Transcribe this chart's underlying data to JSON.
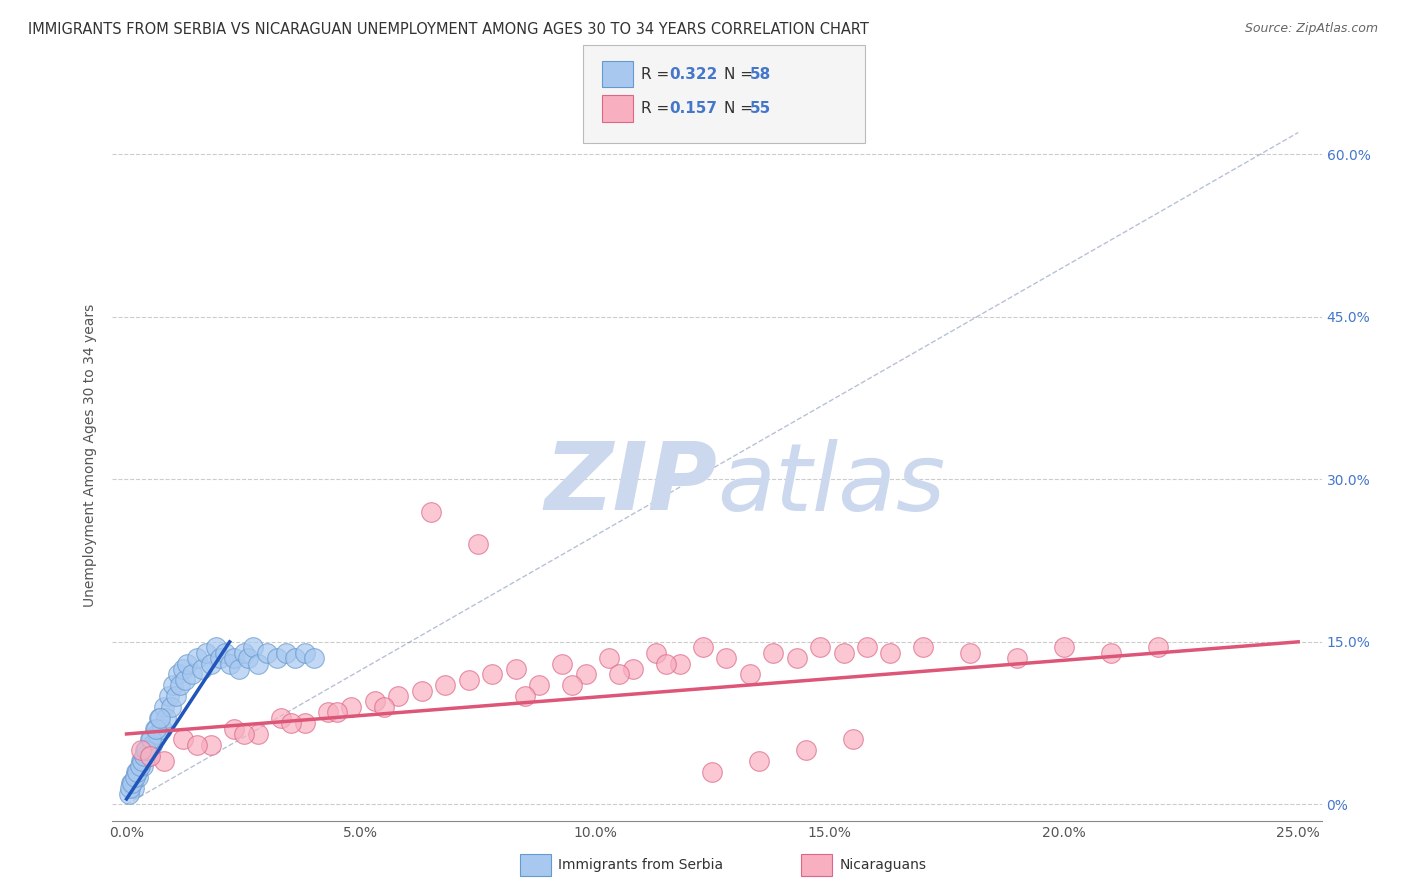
{
  "title": "IMMIGRANTS FROM SERBIA VS NICARAGUAN UNEMPLOYMENT AMONG AGES 30 TO 34 YEARS CORRELATION CHART",
  "source": "Source: ZipAtlas.com",
  "ylabel": "Unemployment Among Ages 30 to 34 years",
  "xlabel_ticks": [
    "0.0%",
    "5.0%",
    "10.0%",
    "15.0%",
    "20.0%",
    "25.0%"
  ],
  "xlabel_vals": [
    0.0,
    5.0,
    10.0,
    15.0,
    20.0,
    25.0
  ],
  "ylabel_ticks_right": [
    "0%",
    "15.0%",
    "30.0%",
    "45.0%",
    "60.0%"
  ],
  "ylabel_vals": [
    0.0,
    15.0,
    30.0,
    45.0,
    60.0
  ],
  "xlim": [
    -0.3,
    25.5
  ],
  "ylim": [
    -1.5,
    66.0
  ],
  "blue_color": "#a8c8f0",
  "blue_edge": "#6699cc",
  "pink_color": "#f8b0c0",
  "pink_edge": "#dd6688",
  "blue_line_color": "#2255bb",
  "pink_line_color": "#dd5577",
  "ref_line_color": "#8899bb",
  "watermark_color": "#ccd8ee",
  "legend_label_blue": "Immigrants from Serbia",
  "legend_label_pink": "Nicaraguans",
  "blue_scatter_x": [
    0.1,
    0.15,
    0.2,
    0.25,
    0.3,
    0.35,
    0.4,
    0.45,
    0.5,
    0.55,
    0.6,
    0.65,
    0.7,
    0.75,
    0.8,
    0.85,
    0.9,
    0.95,
    1.0,
    1.05,
    1.1,
    1.15,
    1.2,
    1.25,
    1.3,
    1.4,
    1.5,
    1.6,
    1.7,
    1.8,
    1.9,
    2.0,
    2.1,
    2.2,
    2.3,
    2.4,
    2.5,
    2.6,
    2.7,
    2.8,
    3.0,
    3.2,
    3.4,
    3.6,
    3.8,
    4.0,
    0.05,
    0.08,
    0.12,
    0.18,
    0.22,
    0.28,
    0.32,
    0.38,
    0.42,
    0.52,
    0.62,
    0.72
  ],
  "blue_scatter_y": [
    2.0,
    1.5,
    3.0,
    2.5,
    4.0,
    3.5,
    5.0,
    4.5,
    6.0,
    5.5,
    7.0,
    6.5,
    8.0,
    7.0,
    9.0,
    8.0,
    10.0,
    9.0,
    11.0,
    10.0,
    12.0,
    11.0,
    12.5,
    11.5,
    13.0,
    12.0,
    13.5,
    12.5,
    14.0,
    13.0,
    14.5,
    13.5,
    14.0,
    13.0,
    13.5,
    12.5,
    14.0,
    13.5,
    14.5,
    13.0,
    14.0,
    13.5,
    14.0,
    13.5,
    14.0,
    13.5,
    1.0,
    1.5,
    2.0,
    2.5,
    3.0,
    3.5,
    4.0,
    4.5,
    5.0,
    6.0,
    7.0,
    8.0
  ],
  "pink_scatter_x": [
    0.3,
    0.8,
    1.2,
    1.8,
    2.3,
    2.8,
    3.3,
    3.8,
    4.3,
    4.8,
    5.3,
    5.8,
    6.3,
    6.8,
    7.3,
    7.8,
    8.3,
    8.8,
    9.3,
    9.8,
    10.3,
    10.8,
    11.3,
    11.8,
    12.3,
    12.8,
    13.3,
    13.8,
    14.3,
    14.8,
    15.3,
    15.8,
    16.3,
    17.0,
    18.0,
    19.0,
    20.0,
    21.0,
    22.0,
    0.5,
    1.5,
    2.5,
    3.5,
    4.5,
    5.5,
    6.5,
    7.5,
    8.5,
    9.5,
    10.5,
    11.5,
    12.5,
    13.5,
    14.5,
    15.5
  ],
  "pink_scatter_y": [
    5.0,
    4.0,
    6.0,
    5.5,
    7.0,
    6.5,
    8.0,
    7.5,
    8.5,
    9.0,
    9.5,
    10.0,
    10.5,
    11.0,
    11.5,
    12.0,
    12.5,
    11.0,
    13.0,
    12.0,
    13.5,
    12.5,
    14.0,
    13.0,
    14.5,
    13.5,
    12.0,
    14.0,
    13.5,
    14.5,
    14.0,
    14.5,
    14.0,
    14.5,
    14.0,
    13.5,
    14.5,
    14.0,
    14.5,
    4.5,
    5.5,
    6.5,
    7.5,
    8.5,
    9.0,
    27.0,
    24.0,
    10.0,
    11.0,
    12.0,
    13.0,
    3.0,
    4.0,
    5.0,
    6.0
  ],
  "blue_line_x": [
    0.0,
    2.2
  ],
  "blue_line_y": [
    0.5,
    15.0
  ],
  "pink_line_x": [
    0.0,
    25.0
  ],
  "pink_line_y": [
    6.5,
    15.0
  ],
  "ref_line_x": [
    0.0,
    25.0
  ],
  "ref_line_y": [
    0.0,
    62.0
  ]
}
